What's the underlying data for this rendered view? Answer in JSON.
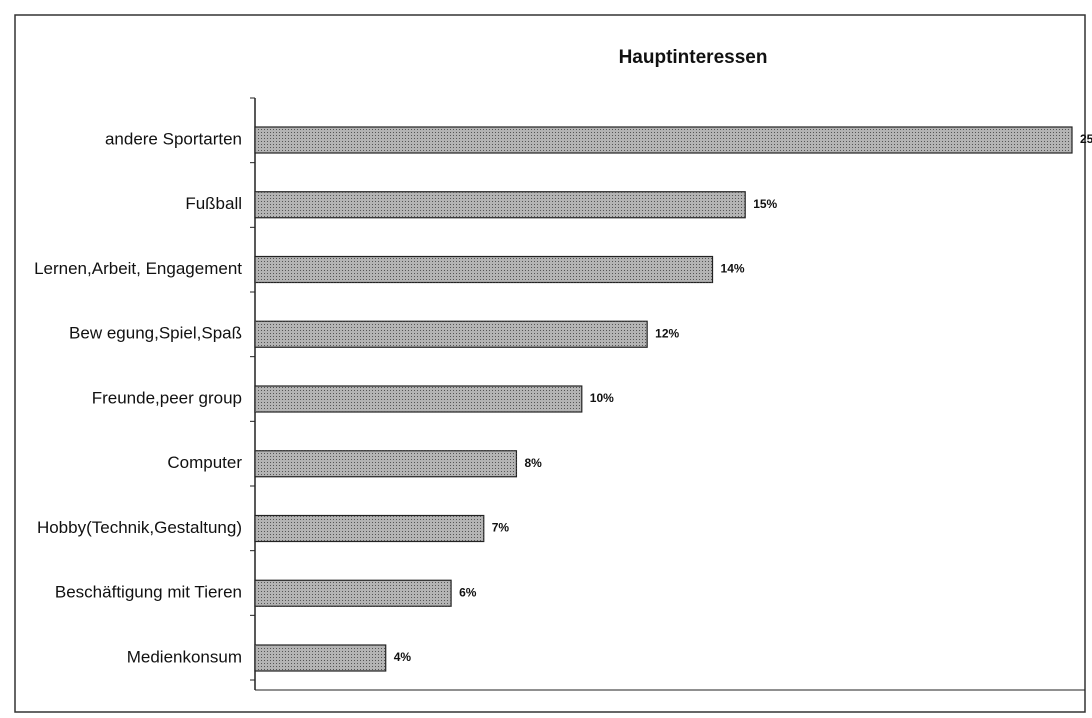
{
  "chart_data": {
    "type": "hbar",
    "title": "Hauptinteressen",
    "categories": [
      "andere Sportarten",
      "Fußball",
      "Lernen,Arbeit, Engagement",
      "Bew egung,Spiel,Spaß",
      "Freunde,peer group",
      "Computer",
      "Hobby(Technik,Gestaltung)",
      "Beschäftigung mit Tieren",
      "Medienkonsum"
    ],
    "values": [
      25,
      15,
      14,
      12,
      10,
      8,
      7,
      6,
      4
    ],
    "value_labels": [
      "25",
      "15%",
      "14%",
      "12%",
      "10%",
      "8%",
      "7%",
      "6%",
      "4%"
    ],
    "color": "#b4b4b4",
    "xlim": [
      0,
      25
    ]
  }
}
